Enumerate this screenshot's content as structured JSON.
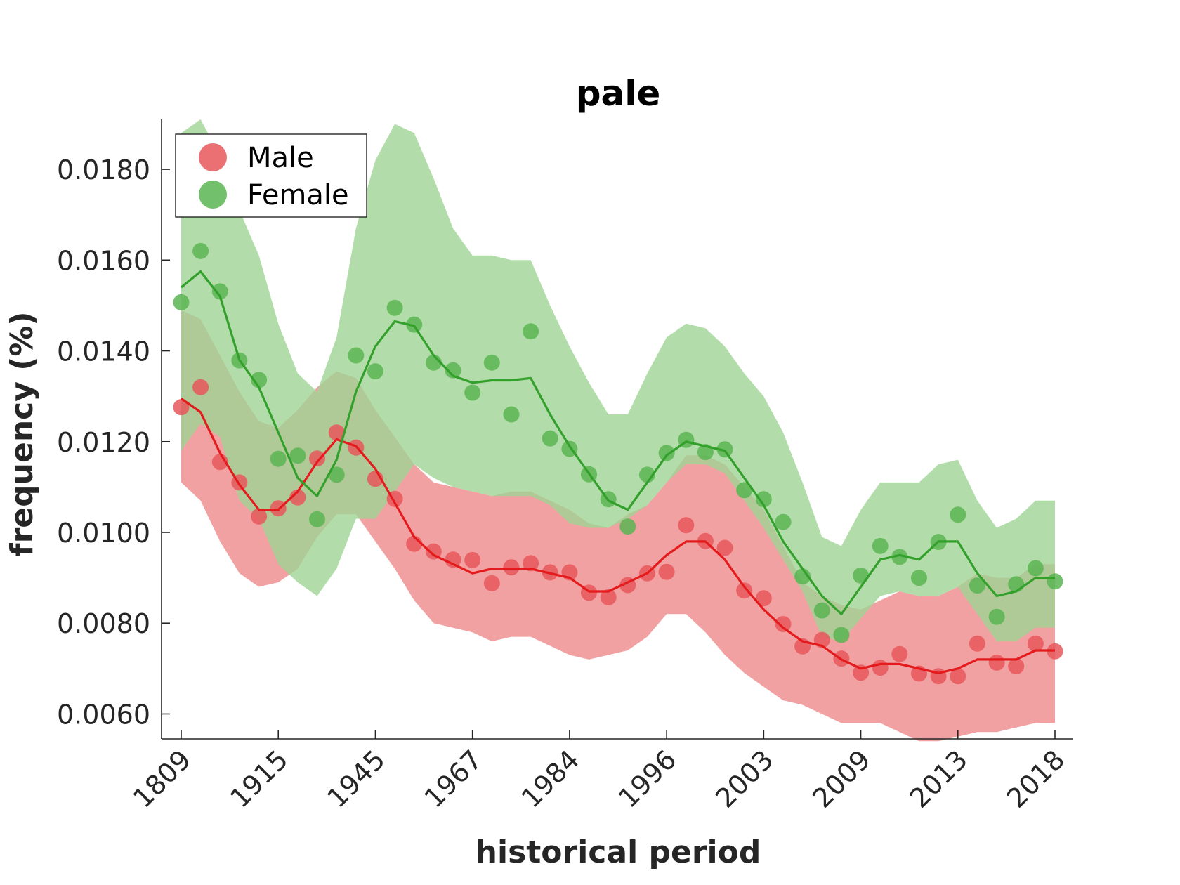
{
  "chart_data": {
    "type": "line",
    "title": "pale",
    "xlabel": "historical period",
    "ylabel": "frequency (%)",
    "x_tick_labels": [
      "1809",
      "1915",
      "1945",
      "1967",
      "1984",
      "1996",
      "2003",
      "2009",
      "2013",
      "2018"
    ],
    "y_ticks": [
      0.006,
      0.008,
      0.01,
      0.012,
      0.014,
      0.016,
      0.018
    ],
    "y_tick_labels": [
      "0.0060",
      "0.0080",
      "0.0100",
      "0.0120",
      "0.0140",
      "0.0160",
      "0.0180"
    ],
    "ylim": [
      0.00545,
      0.0191
    ],
    "x_count": 46,
    "grid": false,
    "legend": {
      "position": "top-left",
      "marker": "circle"
    },
    "series": [
      {
        "name": "Male",
        "color": "#e41a1c",
        "points": [
          0.01276,
          0.0132,
          0.01155,
          0.0111,
          0.01035,
          0.01053,
          0.01077,
          0.01163,
          0.0122,
          0.01187,
          0.01118,
          0.01074,
          0.00975,
          0.00958,
          0.0094,
          0.00939,
          0.00888,
          0.00923,
          0.00932,
          0.00912,
          0.00912,
          0.00867,
          0.00857,
          0.00884,
          0.0091,
          0.00913,
          0.01016,
          0.00981,
          0.00966,
          0.00872,
          0.00855,
          0.00798,
          0.00749,
          0.00763,
          0.00722,
          0.00691,
          0.00702,
          0.00732,
          0.00689,
          0.00683,
          0.00683,
          0.00755,
          0.00713,
          0.00705,
          0.00755,
          0.00738
        ],
        "fit": [
          0.01295,
          0.01265,
          0.01175,
          0.01105,
          0.0105,
          0.0105,
          0.0109,
          0.01155,
          0.01205,
          0.0119,
          0.0114,
          0.01065,
          0.0099,
          0.0095,
          0.0093,
          0.0091,
          0.0092,
          0.0092,
          0.0092,
          0.0091,
          0.009,
          0.0087,
          0.0087,
          0.0089,
          0.0091,
          0.0095,
          0.0098,
          0.0098,
          0.0094,
          0.0088,
          0.0083,
          0.0079,
          0.0076,
          0.0075,
          0.0072,
          0.007,
          0.0071,
          0.0071,
          0.007,
          0.0069,
          0.007,
          0.0072,
          0.0072,
          0.0072,
          0.0074,
          0.0074
        ],
        "band_upper": [
          0.0149,
          0.0147,
          0.0139,
          0.0131,
          0.01245,
          0.0123,
          0.0127,
          0.0132,
          0.01355,
          0.0134,
          0.0127,
          0.0121,
          0.0115,
          0.0111,
          0.011,
          0.0109,
          0.0108,
          0.0109,
          0.0109,
          0.0107,
          0.0105,
          0.0102,
          0.0101,
          0.0104,
          0.0106,
          0.0111,
          0.0117,
          0.0117,
          0.0115,
          0.011,
          0.0105,
          0.0097,
          0.0089,
          0.0086,
          0.0084,
          0.0083,
          0.0085,
          0.0087,
          0.0086,
          0.0086,
          0.0088,
          0.0091,
          0.009,
          0.009,
          0.0093,
          0.0093
        ],
        "band_lower": [
          0.0111,
          0.0107,
          0.0098,
          0.0091,
          0.0088,
          0.0089,
          0.0092,
          0.0099,
          0.0104,
          0.0104,
          0.0098,
          0.0092,
          0.0085,
          0.008,
          0.0079,
          0.0078,
          0.0076,
          0.0077,
          0.0077,
          0.0075,
          0.0073,
          0.0072,
          0.0073,
          0.0074,
          0.0077,
          0.0082,
          0.0082,
          0.0078,
          0.0073,
          0.0069,
          0.0066,
          0.0063,
          0.0062,
          0.006,
          0.0058,
          0.0058,
          0.0058,
          0.0056,
          0.0054,
          0.0054,
          0.0055,
          0.0056,
          0.0056,
          0.0057,
          0.0058,
          0.0058
        ]
      },
      {
        "name": "Female",
        "color": "#33a02c",
        "points": [
          0.01507,
          0.0162,
          0.01531,
          0.01379,
          0.01336,
          0.01162,
          0.01169,
          0.01029,
          0.01127,
          0.0139,
          0.01355,
          0.01495,
          0.01458,
          0.01374,
          0.01357,
          0.01308,
          0.01374,
          0.0126,
          0.01443,
          0.01207,
          0.01184,
          0.01128,
          0.01073,
          0.01013,
          0.01127,
          0.01175,
          0.01204,
          0.01177,
          0.01183,
          0.01093,
          0.01073,
          0.01023,
          0.00903,
          0.00828,
          0.00774,
          0.00905,
          0.0097,
          0.00946,
          0.009,
          0.00979,
          0.01039,
          0.00883,
          0.00814,
          0.00886,
          0.00921,
          0.00892
        ],
        "fit": [
          0.0154,
          0.01575,
          0.0152,
          0.0138,
          0.0132,
          0.0122,
          0.0112,
          0.0108,
          0.0116,
          0.0131,
          0.0141,
          0.01465,
          0.01455,
          0.0139,
          0.01345,
          0.0133,
          0.01335,
          0.01335,
          0.0134,
          0.0126,
          0.0119,
          0.0113,
          0.0107,
          0.0105,
          0.0111,
          0.0117,
          0.012,
          0.0119,
          0.0118,
          0.0112,
          0.0106,
          0.0098,
          0.0092,
          0.0086,
          0.0082,
          0.0088,
          0.0094,
          0.0095,
          0.0094,
          0.0098,
          0.0098,
          0.0091,
          0.0086,
          0.0087,
          0.009,
          0.009
        ],
        "band_upper": [
          0.0188,
          0.0191,
          0.0183,
          0.0171,
          0.0161,
          0.0146,
          0.0135,
          0.0131,
          0.0143,
          0.0167,
          0.0182,
          0.019,
          0.0188,
          0.0178,
          0.0167,
          0.0161,
          0.0161,
          0.016,
          0.016,
          0.015,
          0.0141,
          0.0133,
          0.0126,
          0.0126,
          0.0135,
          0.0143,
          0.0146,
          0.0145,
          0.0141,
          0.0135,
          0.013,
          0.0122,
          0.0111,
          0.0099,
          0.0097,
          0.0105,
          0.0111,
          0.0111,
          0.0111,
          0.0115,
          0.0116,
          0.0107,
          0.0101,
          0.0103,
          0.0107,
          0.0107
        ],
        "band_lower": [
          0.0118,
          0.0124,
          0.0121,
          0.0107,
          0.0103,
          0.0093,
          0.0089,
          0.0086,
          0.0092,
          0.0103,
          0.0103,
          0.0109,
          0.0115,
          0.0112,
          0.011,
          0.0109,
          0.0108,
          0.0108,
          0.0108,
          0.0106,
          0.0102,
          0.0101,
          0.0101,
          0.0103,
          0.0106,
          0.0111,
          0.0115,
          0.0115,
          0.0113,
          0.0107,
          0.0101,
          0.0094,
          0.0087,
          0.0077,
          0.0076,
          0.0081,
          0.0086,
          0.0087,
          0.0086,
          0.0086,
          0.0088,
          0.0082,
          0.0076,
          0.0076,
          0.0079,
          0.0079
        ]
      }
    ]
  }
}
